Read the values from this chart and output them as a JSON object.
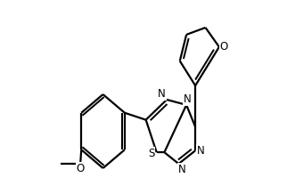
{
  "bg_color": "#ffffff",
  "atom_color": "#000000",
  "bond_color": "#000000",
  "line_width": 1.6,
  "font_size": 8.5,
  "figsize": [
    3.22,
    2.18
  ],
  "dpi": 100,
  "xlim": [
    0,
    1
  ],
  "ylim": [
    0,
    1
  ]
}
